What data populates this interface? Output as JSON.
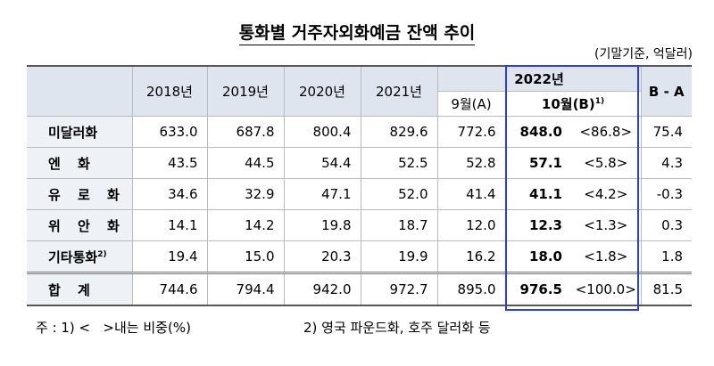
{
  "title": "통화별 거주자외화예금 잔액 추이",
  "unit_note": "(기말기준, 억달러)",
  "table": {
    "header": {
      "years": [
        "2018년",
        "2019년",
        "2020년",
        "2021년"
      ],
      "year_2022": "2022년",
      "sep": "9월(A)",
      "oct": "10월(B)",
      "oct_note": "1)",
      "diff": "B - A"
    },
    "rows": [
      {
        "label": "미달러화",
        "values": [
          "633.0",
          "687.8",
          "800.4",
          "829.6",
          "772.6",
          "848.0"
        ],
        "share": "<86.8>",
        "diff": "75.4"
      },
      {
        "label": "엔 화",
        "values": [
          "43.5",
          "44.5",
          "54.4",
          "52.5",
          "52.8",
          "57.1"
        ],
        "share": "<5.8>",
        "diff": "4.3"
      },
      {
        "label": "유 로 화",
        "values": [
          "34.6",
          "32.9",
          "47.1",
          "52.0",
          "41.4",
          "41.1"
        ],
        "share": "<4.2>",
        "diff": "-0.3"
      },
      {
        "label": "위 안 화",
        "values": [
          "14.1",
          "14.2",
          "19.8",
          "18.7",
          "12.0",
          "12.3"
        ],
        "share": "<1.3>",
        "diff": "0.3"
      },
      {
        "label": "기타통화",
        "note": "2)",
        "values": [
          "19.4",
          "15.0",
          "20.3",
          "19.9",
          "16.2",
          "18.0"
        ],
        "share": "<1.8>",
        "diff": "1.8"
      },
      {
        "label": "합 계",
        "values": [
          "744.6",
          "794.4",
          "942.0",
          "972.7",
          "895.0",
          "976.5"
        ],
        "share": "<100.0>",
        "diff": "81.5"
      }
    ]
  },
  "footnotes": [
    "주 : 1) <   >내는 비중(%)",
    "2) 영국 파운드화, 호주 달러화 등"
  ]
}
